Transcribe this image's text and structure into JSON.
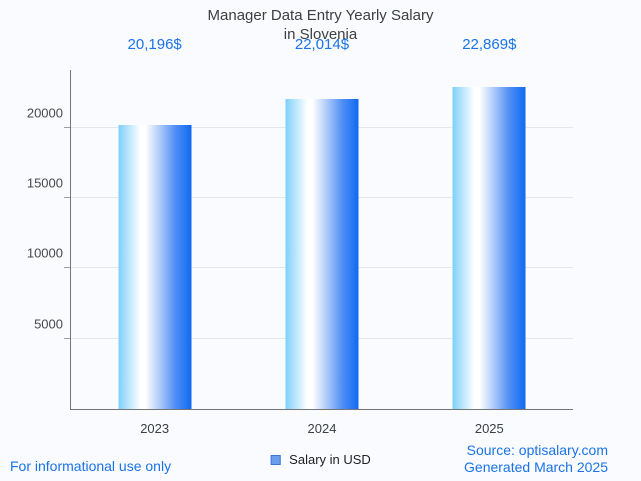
{
  "title": {
    "line1": "Manager Data Entry Yearly Salary",
    "line2": "in Slovenia"
  },
  "legend": {
    "label": "Salary in USD"
  },
  "footer": {
    "left": "For informational use only",
    "source": "Source: optisalary.com",
    "generated": "Generated March 2025"
  },
  "colors": {
    "accent_blue": "#1a73e8",
    "title_text": "#3c4043",
    "bar_gradient_left": "#7ed0fa",
    "bar_gradient_mid": "#ffffff",
    "bar_gradient_right": "#0f6af3",
    "legend_fill": "#6d9eeb",
    "legend_border": "#3c78d8",
    "gridline": "#e4e7ee",
    "axis_line": "#757575",
    "background": "#fafbfe"
  },
  "chart_data": {
    "type": "bar",
    "title": "Manager Data Entry Yearly Salary in Slovenia",
    "categories": [
      "2023",
      "2024",
      "2025"
    ],
    "series": [
      {
        "name": "Salary in USD",
        "values": [
          20196,
          22014,
          22869
        ]
      }
    ],
    "value_labels": [
      "20,196$",
      "22,014$",
      "22,869$"
    ],
    "xlabel": "",
    "ylabel": "",
    "yticks": [
      5000,
      10000,
      15000,
      20000
    ],
    "ylim": [
      0,
      24100
    ],
    "grid": true,
    "legend_position": "bottom"
  }
}
